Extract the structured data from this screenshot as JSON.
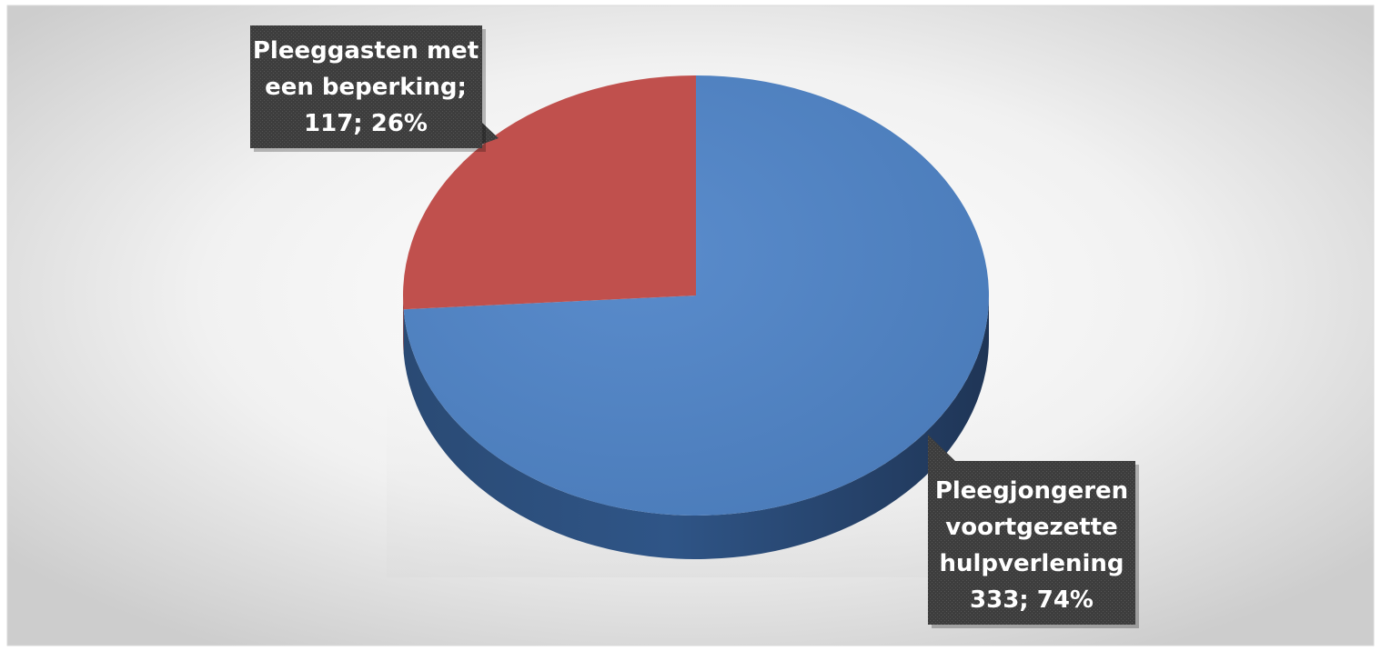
{
  "chart_data": {
    "type": "pie",
    "style": "3d",
    "slices": [
      {
        "category_lines": [
          "Pleegjongeren",
          "voortgezette",
          "hulpverlening"
        ],
        "value": 333,
        "percent": "74%",
        "label_value": "333; 74%",
        "color": "#4F81BD"
      },
      {
        "category_lines": [
          "Pleeggasten met",
          "een beperking;"
        ],
        "value": 117,
        "percent": "26%",
        "label_value": "117; 26%",
        "color": "#C0504D"
      }
    ],
    "legend": "none",
    "data_labels": "callout"
  },
  "colors": {
    "background_center": "#ffffff",
    "background_edge": "#cfcfcf",
    "label_box": "#3f3f3f",
    "label_text": "#ffffff"
  }
}
